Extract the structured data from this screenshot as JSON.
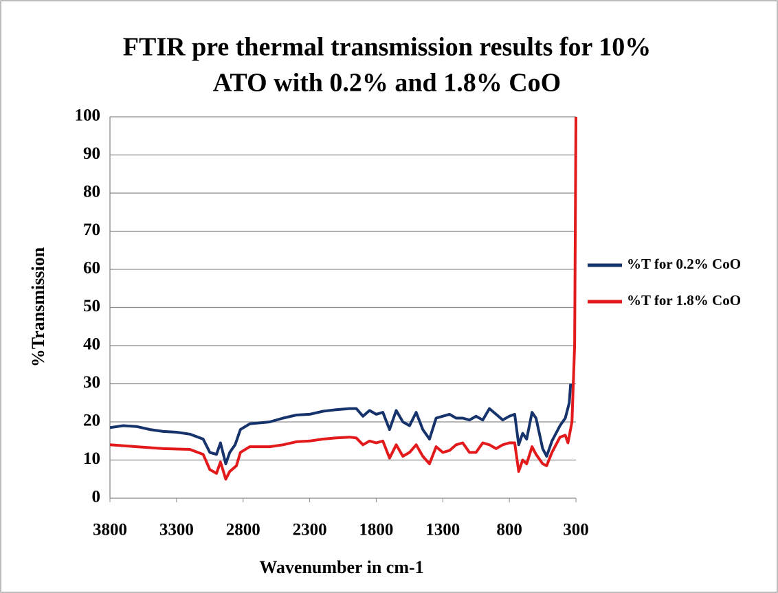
{
  "chart_data": {
    "type": "line",
    "title": [
      "FTIR pre thermal transmission results for 10%",
      "ATO with 0.2% and 1.8% CoO"
    ],
    "x_label": "Wavenumber in cm-1",
    "y_label": "%Transmission",
    "xlim": [
      3800,
      300
    ],
    "xticks": [
      3800,
      3300,
      2800,
      2300,
      1800,
      1300,
      800,
      300
    ],
    "ylim": [
      0,
      100
    ],
    "yticks": [
      0,
      10,
      20,
      30,
      40,
      50,
      60,
      70,
      80,
      90,
      100
    ],
    "grid": true,
    "legend": "right",
    "series": [
      {
        "name": "%T for 0.2% CoO",
        "color": "#17336b",
        "x": [
          3800,
          3700,
          3600,
          3500,
          3400,
          3300,
          3200,
          3100,
          3050,
          3000,
          2970,
          2930,
          2900,
          2860,
          2820,
          2750,
          2600,
          2500,
          2400,
          2300,
          2200,
          2100,
          2000,
          1950,
          1900,
          1850,
          1800,
          1750,
          1700,
          1650,
          1600,
          1550,
          1500,
          1450,
          1400,
          1350,
          1300,
          1250,
          1200,
          1150,
          1100,
          1050,
          1000,
          950,
          900,
          850,
          800,
          760,
          730,
          700,
          670,
          630,
          600,
          550,
          520,
          480,
          420,
          380,
          350,
          340
        ],
        "values": [
          18.5,
          19,
          18.8,
          18,
          17.5,
          17.3,
          16.8,
          15.5,
          12,
          11.5,
          14.5,
          9,
          12,
          14,
          18,
          19.5,
          20,
          21,
          21.8,
          22,
          22.8,
          23.2,
          23.5,
          23.5,
          21.5,
          23,
          22,
          22.5,
          18,
          23,
          20,
          19,
          22.5,
          18,
          15.5,
          21,
          21.5,
          22,
          21,
          21,
          20.5,
          21.5,
          20.5,
          23.5,
          22,
          20.5,
          21.5,
          22,
          14,
          17,
          15.5,
          22.5,
          21,
          13,
          11,
          15,
          19,
          21,
          25,
          30
        ]
      },
      {
        "name": "%T for 1.8% CoO",
        "color": "#e31a1c",
        "x": [
          3800,
          3600,
          3400,
          3200,
          3100,
          3050,
          3000,
          2970,
          2930,
          2900,
          2850,
          2820,
          2750,
          2600,
          2500,
          2400,
          2300,
          2200,
          2100,
          2000,
          1950,
          1900,
          1850,
          1800,
          1750,
          1700,
          1650,
          1600,
          1550,
          1500,
          1450,
          1400,
          1350,
          1300,
          1250,
          1200,
          1150,
          1100,
          1050,
          1000,
          950,
          900,
          850,
          800,
          760,
          730,
          700,
          670,
          630,
          600,
          550,
          520,
          480,
          420,
          380,
          360,
          330,
          310,
          300
        ],
        "values": [
          14,
          13.5,
          13,
          12.8,
          11.5,
          7.5,
          6.5,
          9.5,
          5,
          7,
          8.5,
          12,
          13.5,
          13.5,
          14,
          14.8,
          15,
          15.5,
          15.8,
          16,
          15.8,
          14,
          15,
          14.5,
          15,
          10.5,
          14,
          11,
          12,
          14,
          11,
          9,
          13.5,
          12,
          12.5,
          14,
          14.5,
          12,
          12,
          14.5,
          14,
          13,
          14,
          14.5,
          14.5,
          7,
          10,
          9,
          13.5,
          11.5,
          9,
          8.5,
          12,
          16,
          16.5,
          14.5,
          20,
          40,
          100
        ]
      }
    ]
  }
}
